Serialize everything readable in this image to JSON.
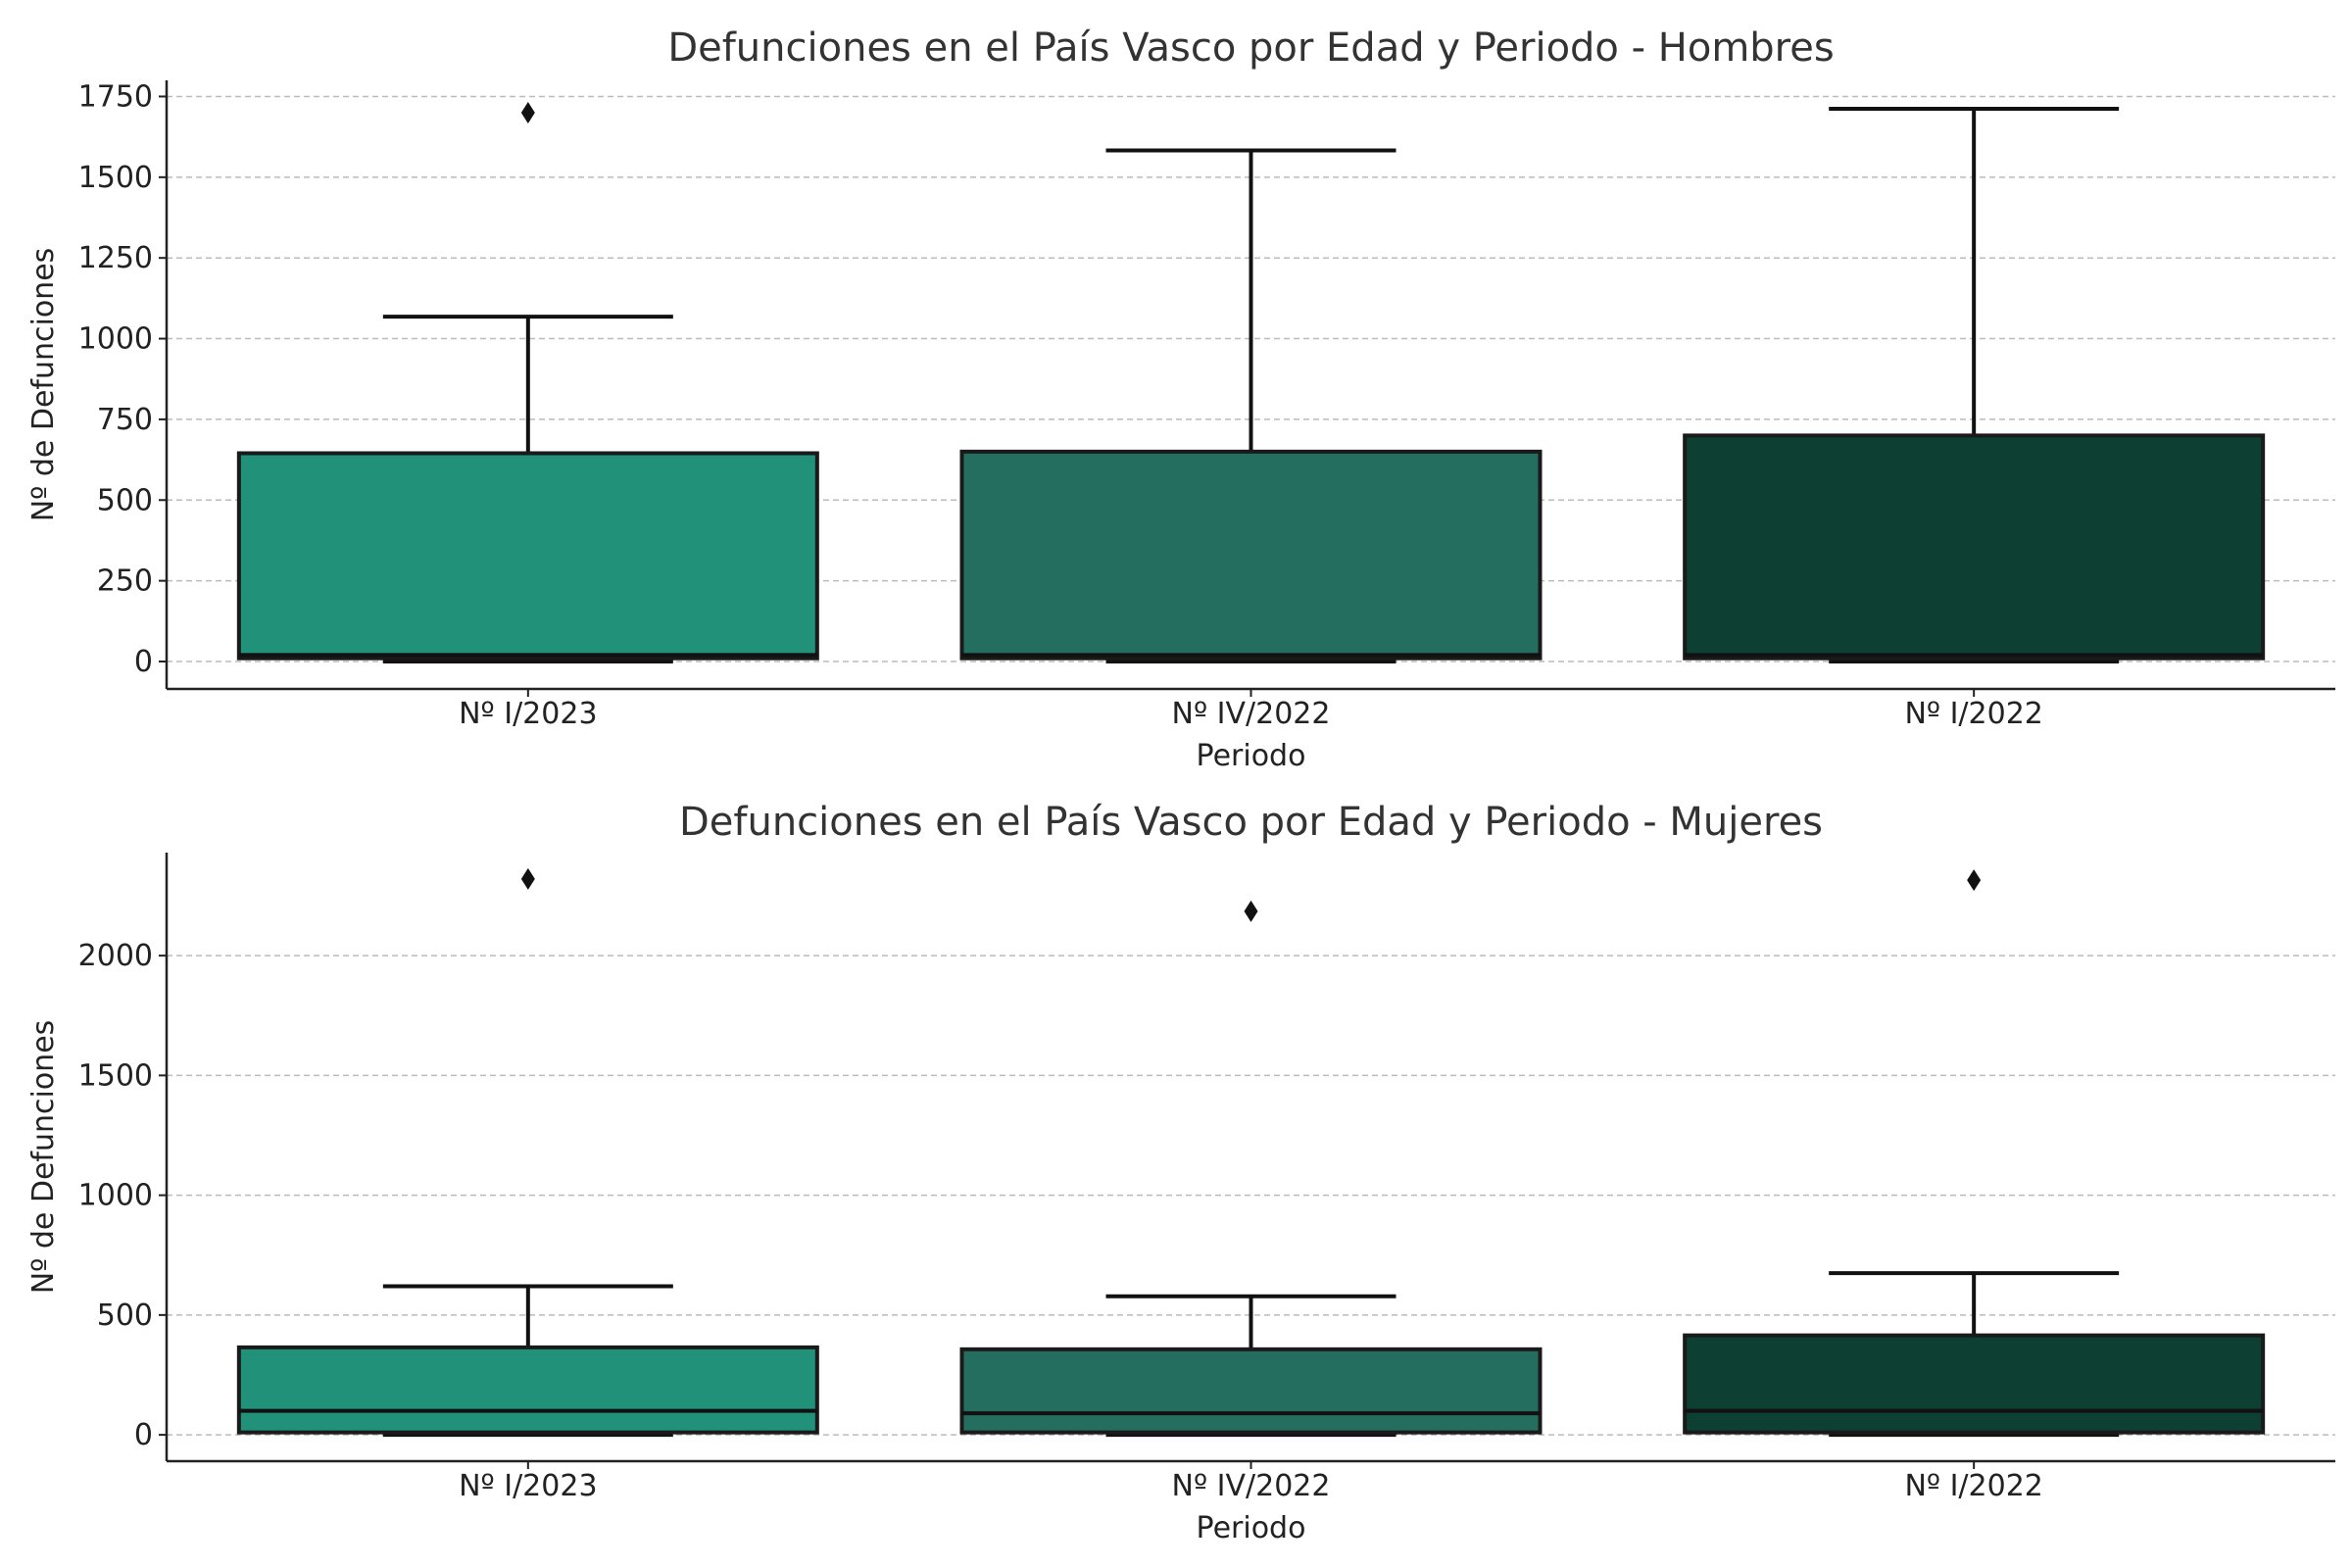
{
  "chart_data": [
    {
      "type": "box",
      "title": "Defunciones en el País Vasco por Edad y Periodo - Hombres",
      "xlabel": "Periodo",
      "ylabel": "Nº de Defunciones",
      "categories": [
        "Nº I/2023",
        "Nº IV/2022",
        "Nº I/2022"
      ],
      "colors": [
        "#22917a",
        "#236e5e",
        "#0d3f33"
      ],
      "ylim": [
        -85,
        1800
      ],
      "yticks": [
        0,
        250,
        500,
        750,
        1000,
        1250,
        1500,
        1750
      ],
      "grid": "horizontal dashed",
      "boxes": [
        {
          "min": 0,
          "q1": 10,
          "median": 20,
          "q3": 645,
          "max": 1068,
          "outliers": [
            1700
          ]
        },
        {
          "min": 0,
          "q1": 10,
          "median": 20,
          "q3": 650,
          "max": 1583,
          "outliers": []
        },
        {
          "min": 0,
          "q1": 10,
          "median": 20,
          "q3": 700,
          "max": 1712,
          "outliers": []
        }
      ]
    },
    {
      "type": "box",
      "title": "Defunciones en el País Vasco por Edad y Periodo - Mujeres",
      "xlabel": "Periodo",
      "ylabel": "Nº de Defunciones",
      "categories": [
        "Nº I/2023",
        "Nº IV/2022",
        "Nº I/2022"
      ],
      "colors": [
        "#22917a",
        "#236e5e",
        "#0d3f33"
      ],
      "ylim": [
        -110,
        2430
      ],
      "yticks": [
        0,
        500,
        1000,
        1500,
        2000
      ],
      "grid": "horizontal dashed",
      "boxes": [
        {
          "min": 0,
          "q1": 10,
          "median": 100,
          "q3": 365,
          "max": 620,
          "outliers": [
            2320
          ]
        },
        {
          "min": 0,
          "q1": 10,
          "median": 90,
          "q3": 357,
          "max": 578,
          "outliers": [
            2185
          ]
        },
        {
          "min": 0,
          "q1": 10,
          "median": 100,
          "q3": 415,
          "max": 675,
          "outliers": [
            2315
          ]
        }
      ]
    }
  ]
}
